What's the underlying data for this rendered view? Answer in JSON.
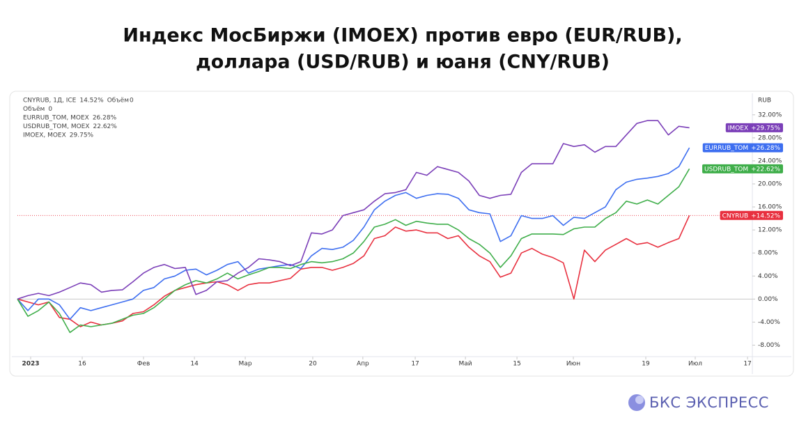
{
  "chart_data": {
    "type": "line",
    "title_lines": [
      "Индекс МосБиржи (IMOEX) против евро (EUR/RUB),",
      "доллара (USD/RUB) и юаня (CNY/RUB)"
    ],
    "y_unit": "RUB",
    "xlim": [
      0,
      70
    ],
    "xticks": [
      {
        "value": 1.26,
        "label": "2023"
      },
      {
        "value": 6.17,
        "label": "16"
      },
      {
        "value": 12.01,
        "label": "Фев"
      },
      {
        "value": 16.86,
        "label": "14"
      },
      {
        "value": 21.7,
        "label": "Мар"
      },
      {
        "value": 28.13,
        "label": "20"
      },
      {
        "value": 32.9,
        "label": "Апр"
      },
      {
        "value": 37.89,
        "label": "17"
      },
      {
        "value": 42.67,
        "label": "Май"
      },
      {
        "value": 47.58,
        "label": "15"
      },
      {
        "value": 52.95,
        "label": "Июн"
      },
      {
        "value": 59.85,
        "label": "19"
      },
      {
        "value": 64.56,
        "label": "Июл"
      },
      {
        "value": 69.54,
        "label": "17"
      }
    ],
    "ylim": [
      -10,
      35
    ],
    "yticks": [
      {
        "value": 32,
        "label": "32.00%"
      },
      {
        "value": 28,
        "label": "28.00%"
      },
      {
        "value": 24,
        "label": "24.00%"
      },
      {
        "value": 20,
        "label": "20.00%"
      },
      {
        "value": 16,
        "label": "16.00%"
      },
      {
        "value": 12,
        "label": "12.00%"
      },
      {
        "value": 8,
        "label": "8.00%"
      },
      {
        "value": 4,
        "label": "4.00%"
      },
      {
        "value": 0,
        "label": "0.00%"
      },
      {
        "value": -4,
        "label": "-4.00%"
      },
      {
        "value": -8,
        "label": "-8.00%"
      }
    ],
    "grid": false,
    "volume": {
      "label": "Объём",
      "value": "0"
    },
    "series": [
      {
        "name": "CNYRUB",
        "color": "#e8303f",
        "legend": "CNYRUB, 1Д, ICE",
        "legend_value": "14.52%",
        "tag_value": "+14.52%",
        "values": [
          0,
          -0.5,
          -1,
          -0.5,
          -3.2,
          -3.5,
          -4.8,
          -4,
          -4.5,
          -4.2,
          -3.8,
          -2.5,
          -2.2,
          -1,
          0.5,
          1.5,
          2,
          2.5,
          2.8,
          3,
          2.5,
          1.5,
          2.5,
          2.8,
          2.8,
          3.2,
          3.6,
          5.2,
          5.5,
          5.5,
          5,
          5.5,
          6.2,
          7.5,
          10.5,
          11,
          12.5,
          11.8,
          12,
          11.5,
          11.5,
          10.5,
          11,
          9,
          7.5,
          6.5,
          3.8,
          4.5,
          8,
          8.8,
          7.8,
          7.2,
          6.3,
          0,
          8.5,
          6.5,
          8.5,
          9.5,
          10.5,
          9.5,
          9.8,
          9,
          9.8,
          10.5,
          14.52
        ]
      },
      {
        "name": "EURRUB_TOM",
        "color": "#3d6ef0",
        "legend": "EURRUB_TOM, MOEX",
        "legend_value": "26.28%",
        "tag_value": "+26.28%",
        "values": [
          0,
          -2,
          0,
          0,
          -1,
          -3.5,
          -1.5,
          -2,
          -1.5,
          -1,
          -0.5,
          0,
          1.5,
          2,
          3.5,
          4,
          5,
          5.2,
          4.2,
          5,
          6,
          6.5,
          4.5,
          5.2,
          5.5,
          5.8,
          6,
          5.3,
          7.5,
          8.8,
          8.6,
          9,
          10.2,
          12.5,
          15.5,
          17,
          18,
          18.5,
          17.5,
          18,
          18.3,
          18.2,
          17.5,
          15.5,
          15,
          14.8,
          10,
          11,
          14.5,
          14,
          14,
          14.5,
          12.8,
          14.2,
          14,
          15,
          16,
          19,
          20.3,
          20.8,
          21,
          21.3,
          21.8,
          23,
          26.28
        ]
      },
      {
        "name": "USDRUB_TOM",
        "color": "#3fae4a",
        "legend": "USDRUB_TOM, MOEX",
        "legend_value": "22.62%",
        "tag_value": "+22.62%",
        "values": [
          0,
          -3,
          -2,
          -0.5,
          -2.5,
          -5.8,
          -4.5,
          -4.8,
          -4.5,
          -4.2,
          -3.5,
          -2.8,
          -2.5,
          -1.5,
          0,
          1.5,
          2.5,
          3.2,
          2.8,
          3.5,
          4.5,
          3.5,
          4.2,
          4.8,
          5.5,
          5.5,
          5.3,
          6,
          6.5,
          6.3,
          6.5,
          7,
          8,
          10,
          12.5,
          13,
          13.8,
          12.8,
          13.5,
          13.2,
          13,
          13,
          12,
          10.5,
          9.5,
          8,
          5.5,
          7.5,
          10.5,
          11.3,
          11.3,
          11.3,
          11.2,
          12.2,
          12.5,
          12.5,
          14,
          15,
          17,
          16.5,
          17.2,
          16.5,
          18,
          19.5,
          22.62
        ]
      },
      {
        "name": "IMOEX",
        "color": "#7b3fb8",
        "legend": "IMOEX, MOEX",
        "legend_value": "29.75%",
        "tag_value": "+29.75%",
        "values": [
          0,
          0.6,
          1,
          0.6,
          1.2,
          2,
          2.8,
          2.5,
          1.2,
          1.5,
          1.6,
          3,
          4.5,
          5.5,
          6,
          5.3,
          5.5,
          0.8,
          1.5,
          3,
          3.2,
          4.5,
          5.5,
          7,
          6.8,
          6.5,
          5.8,
          6.5,
          11.5,
          11.3,
          12,
          14.5,
          15,
          15.5,
          17,
          18.3,
          18.5,
          19,
          22,
          21.5,
          23,
          22.5,
          22,
          20.5,
          18,
          17.5,
          18,
          18.2,
          22,
          23.5,
          23.5,
          23.5,
          27,
          26.5,
          26.8,
          25.5,
          26.5,
          26.5,
          28.5,
          30.5,
          31,
          31,
          28.5,
          30,
          29.75
        ]
      }
    ]
  },
  "brand": "БКС ЭКСПРЕСС"
}
